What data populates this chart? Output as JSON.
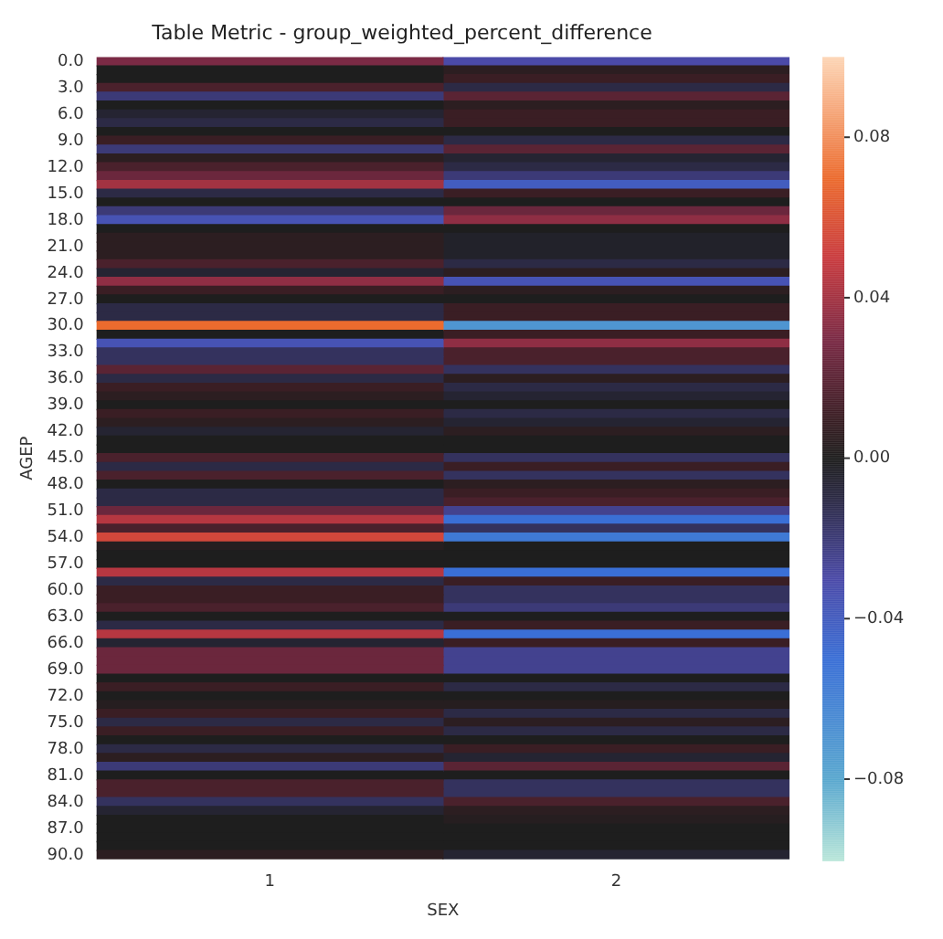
{
  "chart_data": {
    "type": "heatmap",
    "title": "Table Metric - group_weighted_percent_difference",
    "xlabel": "SEX",
    "ylabel": "AGEP",
    "categories": [
      "1",
      "2"
    ],
    "y_categories": [
      "0.0",
      null,
      null,
      "3.0",
      null,
      null,
      "6.0",
      null,
      null,
      "9.0",
      null,
      null,
      "12.0",
      null,
      null,
      "15.0",
      null,
      null,
      "18.0",
      null,
      null,
      "21.0",
      null,
      null,
      "24.0",
      null,
      null,
      "27.0",
      null,
      null,
      "30.0",
      null,
      null,
      "33.0",
      null,
      null,
      "36.0",
      null,
      null,
      "39.0",
      null,
      null,
      "42.0",
      null,
      null,
      "45.0",
      null,
      null,
      "48.0",
      null,
      null,
      "51.0",
      null,
      null,
      "54.0",
      null,
      null,
      "57.0",
      null,
      null,
      "60.0",
      null,
      null,
      "63.0",
      null,
      null,
      "66.0",
      null,
      null,
      "69.0",
      null,
      null,
      "72.0",
      null,
      null,
      "75.0",
      null,
      null,
      "78.0",
      null,
      null,
      "81.0",
      null,
      null,
      "84.0",
      null,
      null,
      "87.0",
      null,
      null,
      "90.0"
    ],
    "cells": [
      [
        0.03,
        -0.03
      ],
      [
        0,
        0.005
      ],
      [
        0,
        0.01
      ],
      [
        0.015,
        -0.01
      ],
      [
        -0.02,
        0.02
      ],
      [
        0,
        0.005
      ],
      [
        -0.005,
        0.01
      ],
      [
        -0.01,
        0.01
      ],
      [
        0,
        0
      ],
      [
        0.01,
        -0.01
      ],
      [
        -0.02,
        0.02
      ],
      [
        0.005,
        -0.005
      ],
      [
        0.015,
        -0.01
      ],
      [
        0.025,
        -0.02
      ],
      [
        0.04,
        -0.04
      ],
      [
        -0.01,
        0.01
      ],
      [
        0,
        0
      ],
      [
        -0.02,
        0.025
      ],
      [
        -0.035,
        0.035
      ],
      [
        0,
        0
      ],
      [
        0.005,
        -0.003
      ],
      [
        0.005,
        -0.003
      ],
      [
        0.005,
        -0.003
      ],
      [
        0.015,
        -0.01
      ],
      [
        -0.005,
        0.005
      ],
      [
        0.035,
        -0.035
      ],
      [
        0.01,
        0.005
      ],
      [
        0,
        0
      ],
      [
        -0.01,
        0.01
      ],
      [
        -0.01,
        0.01
      ],
      [
        0.07,
        -0.07
      ],
      [
        0,
        0.01
      ],
      [
        -0.035,
        0.035
      ],
      [
        -0.015,
        0.015
      ],
      [
        -0.015,
        0.015
      ],
      [
        0.02,
        -0.015
      ],
      [
        -0.01,
        0.005
      ],
      [
        0.01,
        -0.01
      ],
      [
        0.005,
        -0.005
      ],
      [
        0,
        0
      ],
      [
        0.01,
        -0.01
      ],
      [
        0.005,
        -0.005
      ],
      [
        -0.005,
        0.005
      ],
      [
        0,
        0
      ],
      [
        0,
        0
      ],
      [
        0.015,
        -0.015
      ],
      [
        -0.01,
        0.01
      ],
      [
        0.015,
        -0.015
      ],
      [
        0,
        0.005
      ],
      [
        -0.01,
        0.01
      ],
      [
        -0.01,
        0.015
      ],
      [
        0.025,
        -0.025
      ],
      [
        0.045,
        -0.05
      ],
      [
        0.015,
        -0.015
      ],
      [
        0.055,
        -0.055
      ],
      [
        0.003,
        0
      ],
      [
        0,
        0
      ],
      [
        0,
        0
      ],
      [
        0.045,
        -0.05
      ],
      [
        -0.01,
        0.01
      ],
      [
        0.01,
        -0.015
      ],
      [
        0.01,
        -0.015
      ],
      [
        0.015,
        -0.02
      ],
      [
        0,
        0
      ],
      [
        -0.01,
        0.01
      ],
      [
        0.045,
        -0.05
      ],
      [
        -0.005,
        0.01
      ],
      [
        0.025,
        -0.025
      ],
      [
        0.025,
        -0.025
      ],
      [
        0.025,
        -0.025
      ],
      [
        0,
        0
      ],
      [
        0.01,
        -0.01
      ],
      [
        0,
        0
      ],
      [
        0.003,
        0.003
      ],
      [
        0.01,
        -0.01
      ],
      [
        -0.01,
        0.005
      ],
      [
        0.01,
        -0.01
      ],
      [
        0,
        0
      ],
      [
        -0.01,
        0.01
      ],
      [
        0.005,
        -0.005
      ],
      [
        -0.02,
        0.02
      ],
      [
        0,
        0
      ],
      [
        0.015,
        -0.015
      ],
      [
        0.015,
        -0.015
      ],
      [
        -0.015,
        0.015
      ],
      [
        -0.005,
        0.005
      ],
      [
        0,
        0.003
      ],
      [
        0,
        0
      ],
      [
        0,
        0
      ],
      [
        0,
        0
      ],
      [
        0.005,
        -0.005
      ]
    ],
    "clim": [
      -0.1,
      0.1
    ],
    "cticks": [
      {
        "value": 0.08,
        "label": "0.08"
      },
      {
        "value": 0.04,
        "label": "0.04"
      },
      {
        "value": 0,
        "label": "0.00"
      },
      {
        "value": -0.04,
        "label": "−0.04"
      },
      {
        "value": -0.08,
        "label": "−0.08"
      }
    ]
  }
}
